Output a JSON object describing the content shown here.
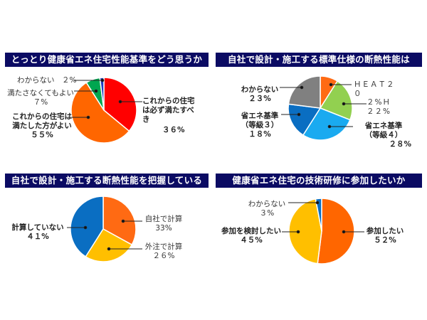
{
  "chart_data": [
    {
      "type": "pie",
      "title": "とっとり健康省エネ住宅性能基準をどう思うか",
      "slices": [
        {
          "label": "これからの住宅は必ず満たすべき",
          "value": 36,
          "color": "#ff0000"
        },
        {
          "label": "これからの住宅は満たした方がよい",
          "value": 55,
          "color": "#ff6600"
        },
        {
          "label": "満たさなくてもよい",
          "value": 7,
          "color": "#00a650"
        },
        {
          "label": "わからない",
          "value": 2,
          "color": "#1f3fbf"
        }
      ]
    },
    {
      "type": "pie",
      "title": "自社で設計・施工する標準仕様の断熱性能は",
      "slices": [
        {
          "label": "HEAT20 G2",
          "value": 9,
          "color": "#ff6a13"
        },
        {
          "label": "ZEH",
          "value": 22,
          "color": "#92d050"
        },
        {
          "label": "省エネ基準（等級4）",
          "value": 28,
          "color": "#1aaaf0"
        },
        {
          "label": "省エネ基準（等級3）",
          "value": 18,
          "color": "#0a6ec2"
        },
        {
          "label": "わからない",
          "value": 23,
          "color": "#808080"
        }
      ]
    },
    {
      "type": "pie",
      "title": "自社で設計・施工する断熱性能を把握している",
      "slices": [
        {
          "label": "自社で計算",
          "value": 33,
          "color": "#ff6a13"
        },
        {
          "label": "外注で計算",
          "value": 26,
          "color": "#ffbf00"
        },
        {
          "label": "計算していない",
          "value": 41,
          "color": "#0a6ec2"
        }
      ]
    },
    {
      "type": "pie",
      "title": "健康省エネ住宅の技術研修に参加したいか",
      "slices": [
        {
          "label": "参加したい",
          "value": 52,
          "color": "#ff6600"
        },
        {
          "label": "参加を検討したい",
          "value": 45,
          "color": "#ffbf00"
        },
        {
          "label": "わからない",
          "value": 3,
          "color": "#0a6ec2"
        }
      ]
    }
  ],
  "charts": {
    "c1": {
      "title": "とっとり健康省エネ住宅性能基準をどう思うか",
      "labels": {
        "must_l1": "これからの住宅",
        "must_l2": "は必ず満たすべ",
        "must_l3": "き",
        "must_pct": "３６%",
        "should_l1": "これからの住宅は",
        "should_l2": "満たした方がよい",
        "should_pct": "５５%",
        "notneed_l1": "満たさなくてもよい",
        "notneed_pct": "７%",
        "unknown": "わからない　２%"
      }
    },
    "c2": {
      "title": "自社で設計・施工する標準仕様の断熱性能は",
      "labels": {
        "heat_l1": "ＨＥＡＴ２",
        "heat_l2": "０",
        "zeh_l1": "２%Ｈ",
        "zeh_pct": "２２%",
        "g4_l1": "省エネ基準",
        "g4_l2": "（等級４）",
        "g4_pct": "２８%",
        "g3_l1": "省エネ基準",
        "g3_l2": "（等級３）",
        "g3_pct": "１８%",
        "unknown_l1": "わからない",
        "unknown_pct": "２３%"
      }
    },
    "c3": {
      "title": "自社で設計・施工する断熱性能を把握している",
      "labels": {
        "self_l1": "自社で計算",
        "self_pct": "33%",
        "out_l1": "外注で計算",
        "out_pct": "２６%",
        "none_l1": "計算していない",
        "none_pct": "４１%"
      }
    },
    "c4": {
      "title": "健康省エネ住宅の技術研修に参加したいか",
      "labels": {
        "yes_l1": "参加したい",
        "yes_pct": "５２%",
        "consider_l1": "参加を検討したい",
        "consider_pct": "４５%",
        "unknown_l1": "わからない",
        "unknown_pct": "３%"
      }
    }
  }
}
